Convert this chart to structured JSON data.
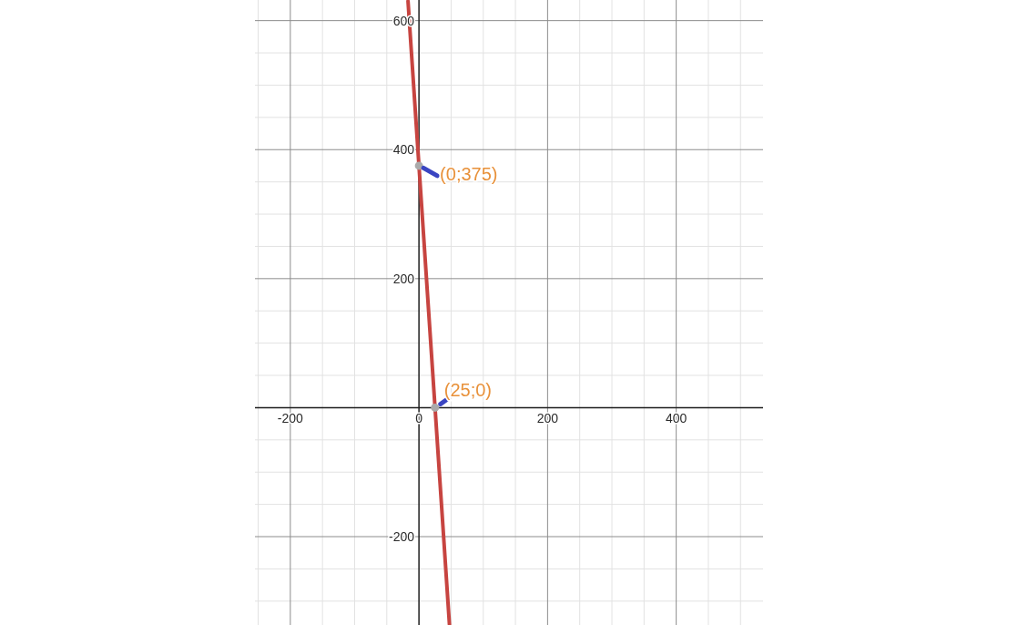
{
  "chart_data": {
    "type": "line",
    "xlim": [
      -255,
      535
    ],
    "ylim": [
      -337,
      632
    ],
    "xticks": [
      {
        "value": -250,
        "label": null
      },
      -200,
      {
        "value": -150,
        "label": null
      },
      {
        "value": -100,
        "label": null
      },
      {
        "value": -50,
        "label": null
      },
      0,
      {
        "value": 50,
        "label": null
      },
      {
        "value": 100,
        "label": null
      },
      {
        "value": 150,
        "label": null
      },
      200,
      {
        "value": 250,
        "label": null
      },
      {
        "value": 300,
        "label": null
      },
      {
        "value": 350,
        "label": null
      },
      400,
      {
        "value": 450,
        "label": null
      },
      {
        "value": 500,
        "label": null
      }
    ],
    "yticks": [
      {
        "value": -300,
        "label": null
      },
      {
        "value": -250,
        "label": null
      },
      -200,
      {
        "value": -150,
        "label": null
      },
      {
        "value": -100,
        "label": null
      },
      {
        "value": -50,
        "label": null
      },
      {
        "value": 0,
        "label": null
      },
      {
        "value": 50,
        "label": null
      },
      {
        "value": 100,
        "label": null
      },
      {
        "value": 150,
        "label": null
      },
      200,
      {
        "value": 250,
        "label": null
      },
      {
        "value": 300,
        "label": null
      },
      {
        "value": 350,
        "label": null
      },
      400,
      {
        "value": 450,
        "label": null
      },
      {
        "value": 500,
        "label": null
      },
      {
        "value": 550,
        "label": null
      },
      600
    ],
    "grid": true,
    "series": [
      {
        "color": "#c74440",
        "x": [
          -17,
          0,
          25,
          47.4
        ],
        "values": [
          630,
          375,
          0,
          -336
        ]
      },
      {
        "type": "scatter",
        "color": "#aaaaaa",
        "x": [
          0,
          25
        ],
        "values": [
          375,
          0
        ]
      }
    ],
    "annotations": [
      {
        "text": "(0;375)",
        "x": 0,
        "y": 375
      },
      {
        "text": "(25;0)",
        "x": 25,
        "y": 0
      }
    ]
  }
}
